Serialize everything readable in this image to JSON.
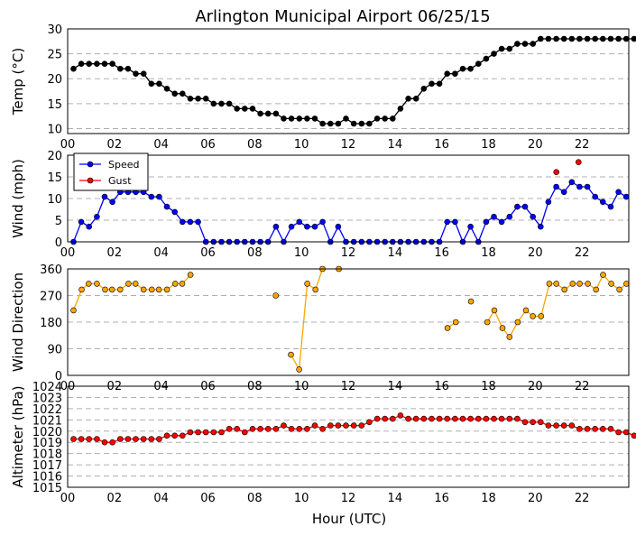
{
  "chart_data": {
    "title": "Arlington Municipal Airport 06/25/15",
    "xlabel": "Hour (UTC)",
    "x_tick_labels": [
      "00",
      "02",
      "04",
      "06",
      "08",
      "10",
      "12",
      "14",
      "16",
      "18",
      "20",
      "22"
    ],
    "colors": {
      "temp": "#000000",
      "speed": "#0000ff",
      "gust": "#ff0000",
      "direction": "#ffa500",
      "altimeter": "#ff0000"
    },
    "panels": [
      {
        "id": "temp",
        "type": "line",
        "ylabel": "Temp (°C)",
        "ylim": [
          9,
          30
        ],
        "yticks": [
          10,
          15,
          20,
          25,
          30
        ],
        "series": [
          {
            "name": "Temp",
            "color": "#000000",
            "line": true,
            "start": 0.25,
            "step": 0.333,
            "values": [
              22,
              23,
              23,
              23,
              23,
              23,
              22,
              22,
              21,
              21,
              19,
              19,
              18,
              17,
              17,
              16,
              16,
              16,
              15,
              15,
              15,
              14,
              14,
              14,
              13,
              13,
              13,
              12,
              12,
              12,
              12,
              12,
              11,
              11,
              11,
              12,
              11,
              11,
              11,
              12,
              12,
              12,
              14,
              16,
              16,
              18,
              19,
              19,
              21,
              21,
              22,
              22,
              23,
              24,
              25,
              26,
              26,
              27,
              27,
              27,
              28,
              28,
              28,
              28,
              28,
              28,
              28,
              28,
              28,
              28,
              28,
              28,
              28
            ]
          }
        ]
      },
      {
        "id": "wind",
        "type": "line",
        "ylabel": "Wind (mph)",
        "ylim": [
          0,
          20
        ],
        "yticks": [
          0,
          5,
          10,
          15,
          20
        ],
        "legend": {
          "position": "top-left",
          "entries": [
            "Speed",
            "Gust"
          ]
        },
        "series": [
          {
            "name": "Speed",
            "color": "#0000ff",
            "line": true,
            "start": 0.25,
            "step": 0.333,
            "values": [
              0,
              4.6,
              3.5,
              5.8,
              10.4,
              9.2,
              11.5,
              11.5,
              11.5,
              11.5,
              10.4,
              10.4,
              8.1,
              6.9,
              4.6,
              4.6,
              4.6,
              0,
              0,
              0,
              0,
              0,
              0,
              0,
              0,
              0,
              3.5,
              0,
              3.5,
              4.6,
              3.5,
              3.5,
              4.6,
              0,
              3.5,
              0,
              0,
              0,
              0,
              0,
              0,
              0,
              0,
              0,
              0,
              0,
              0,
              0,
              4.6,
              4.6,
              0,
              3.5,
              0,
              4.6,
              5.8,
              4.6,
              5.8,
              8.1,
              8.1,
              5.8,
              3.5,
              9.2,
              12.7,
              11.5,
              13.8,
              12.7,
              12.7,
              10.4,
              9.2,
              8.1,
              11.5,
              10.4
            ]
          },
          {
            "name": "Gust",
            "color": "#ff0000",
            "line": false,
            "points": [
              [
                20.9,
                16.1
              ],
              [
                21.85,
                18.4
              ]
            ]
          }
        ]
      },
      {
        "id": "direction",
        "type": "line",
        "ylabel": "Wind Direction",
        "ylim": [
          0,
          360
        ],
        "yticks": [
          0,
          90,
          180,
          270,
          360
        ],
        "series": [
          {
            "name": "Direction",
            "color": "#ffa500",
            "line": true,
            "runs": [
              [
                [
                  0.25,
                  220
                ],
                [
                  0.6,
                  290
                ],
                [
                  0.9,
                  310
                ],
                [
                  1.25,
                  310
                ],
                [
                  1.6,
                  290
                ],
                [
                  1.9,
                  290
                ],
                [
                  2.25,
                  290
                ],
                [
                  2.6,
                  310
                ],
                [
                  2.9,
                  310
                ],
                [
                  3.25,
                  290
                ],
                [
                  3.6,
                  290
                ],
                [
                  3.9,
                  290
                ],
                [
                  4.25,
                  290
                ],
                [
                  4.6,
                  310
                ],
                [
                  4.9,
                  310
                ],
                [
                  5.25,
                  340
                ]
              ],
              [
                [
                  8.9,
                  270
                ]
              ],
              [
                [
                  9.55,
                  70
                ],
                [
                  9.9,
                  20
                ],
                [
                  10.25,
                  310
                ],
                [
                  10.6,
                  290
                ],
                [
                  10.9,
                  360
                ]
              ],
              [
                [
                  11.6,
                  360
                ]
              ],
              [
                [
                  16.25,
                  160
                ],
                [
                  16.6,
                  180
                ]
              ],
              [
                [
                  17.25,
                  250
                ]
              ],
              [
                [
                  17.95,
                  180
                ],
                [
                  18.25,
                  220
                ],
                [
                  18.6,
                  160
                ],
                [
                  18.9,
                  130
                ],
                [
                  19.25,
                  180
                ],
                [
                  19.6,
                  220
                ],
                [
                  19.9,
                  200
                ],
                [
                  20.25,
                  200
                ],
                [
                  20.6,
                  310
                ],
                [
                  20.9,
                  310
                ],
                [
                  21.25,
                  290
                ],
                [
                  21.6,
                  310
                ],
                [
                  21.9,
                  310
                ],
                [
                  22.25,
                  310
                ],
                [
                  22.6,
                  290
                ],
                [
                  22.9,
                  340
                ],
                [
                  23.25,
                  310
                ],
                [
                  23.6,
                  290
                ],
                [
                  23.9,
                  310
                ]
              ]
            ]
          }
        ]
      },
      {
        "id": "altimeter",
        "type": "line",
        "ylabel": "Altimeter (hPa)",
        "ylim": [
          1015,
          1024
        ],
        "yticks": [
          1015,
          1016,
          1017,
          1018,
          1019,
          1020,
          1021,
          1022,
          1023,
          1024
        ],
        "series": [
          {
            "name": "Altimeter",
            "color": "#ff0000",
            "line": true,
            "start": 0.25,
            "step": 0.333,
            "values": [
              1019.3,
              1019.3,
              1019.3,
              1019.3,
              1019.0,
              1019.0,
              1019.3,
              1019.3,
              1019.3,
              1019.3,
              1019.3,
              1019.3,
              1019.6,
              1019.6,
              1019.6,
              1019.9,
              1019.9,
              1019.9,
              1019.9,
              1019.9,
              1020.2,
              1020.2,
              1019.9,
              1020.2,
              1020.2,
              1020.2,
              1020.2,
              1020.5,
              1020.2,
              1020.2,
              1020.2,
              1020.5,
              1020.2,
              1020.5,
              1020.5,
              1020.5,
              1020.5,
              1020.5,
              1020.8,
              1021.1,
              1021.1,
              1021.1,
              1021.4,
              1021.1,
              1021.1,
              1021.1,
              1021.1,
              1021.1,
              1021.1,
              1021.1,
              1021.1,
              1021.1,
              1021.1,
              1021.1,
              1021.1,
              1021.1,
              1021.1,
              1021.1,
              1020.8,
              1020.8,
              1020.8,
              1020.5,
              1020.5,
              1020.5,
              1020.5,
              1020.2,
              1020.2,
              1020.2,
              1020.2,
              1020.2,
              1019.9,
              1019.9,
              1019.6,
              1019.6,
              1019.6
            ]
          }
        ]
      }
    ]
  }
}
